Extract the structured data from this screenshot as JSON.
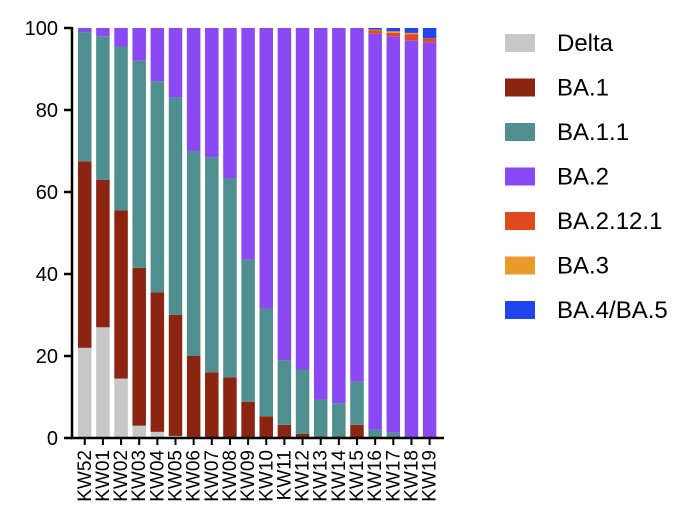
{
  "chart_data": {
    "type": "bar",
    "stacked": true,
    "title": "",
    "xlabel": "",
    "ylabel": "",
    "ylim": [
      0,
      100
    ],
    "yticks": [
      0,
      20,
      40,
      60,
      80,
      100
    ],
    "grid": false,
    "legend_position": "right",
    "categories": [
      "KW52",
      "KW01",
      "KW02",
      "KW03",
      "KW04",
      "KW05",
      "KW06",
      "KW07",
      "KW08",
      "KW09",
      "KW10",
      "KW11",
      "KW12",
      "KW13",
      "KW14",
      "KW15",
      "KW16",
      "KW17",
      "KW18",
      "KW19"
    ],
    "series": [
      {
        "name": "Delta",
        "color": "#c8c8c8",
        "values": [
          22,
          27,
          14.5,
          3,
          1.5,
          0.5,
          0.3,
          0,
          0,
          0,
          0,
          0,
          0,
          0,
          0,
          0,
          0,
          0,
          0,
          0
        ]
      },
      {
        "name": "BA.1",
        "color": "#8b2410",
        "values": [
          45.5,
          36,
          41,
          38.5,
          34,
          29.5,
          19.7,
          16,
          14.8,
          8.8,
          5.3,
          3.2,
          1,
          0.4,
          0.4,
          3.2,
          0.3,
          0,
          0,
          0
        ]
      },
      {
        "name": "BA.1.1",
        "color": "#4f8f8f",
        "values": [
          31.5,
          35,
          40,
          50.5,
          51.5,
          53,
          50,
          52.5,
          48.5,
          34.7,
          26.3,
          15.8,
          15.7,
          9,
          8.1,
          10.6,
          1.7,
          1.3,
          0.2,
          0.2
        ]
      },
      {
        "name": "BA.2",
        "color": "#8a49f2",
        "values": [
          1,
          2,
          4.5,
          8,
          13,
          17,
          30,
          31.5,
          36.7,
          56.5,
          68.4,
          81,
          83.3,
          90.6,
          91.5,
          86.2,
          96.6,
          96.7,
          96.8,
          96.3
        ]
      },
      {
        "name": "BA.2.12.1",
        "color": "#e04a1f",
        "values": [
          0,
          0,
          0,
          0,
          0,
          0,
          0,
          0,
          0,
          0,
          0,
          0,
          0,
          0,
          0,
          0,
          0.8,
          0.8,
          1.5,
          1
        ]
      },
      {
        "name": "BA.3",
        "color": "#eb9a2c",
        "values": [
          0,
          0,
          0,
          0,
          0,
          0,
          0,
          0,
          0,
          0,
          0,
          0,
          0,
          0,
          0,
          0,
          0.2,
          0.4,
          0.3,
          0
        ]
      },
      {
        "name": "BA.4/BA.5",
        "color": "#2146f0",
        "values": [
          0,
          0,
          0,
          0,
          0,
          0,
          0,
          0,
          0,
          0,
          0,
          0,
          0,
          0,
          0,
          0,
          0.4,
          0.8,
          1.2,
          2.5
        ]
      }
    ]
  }
}
